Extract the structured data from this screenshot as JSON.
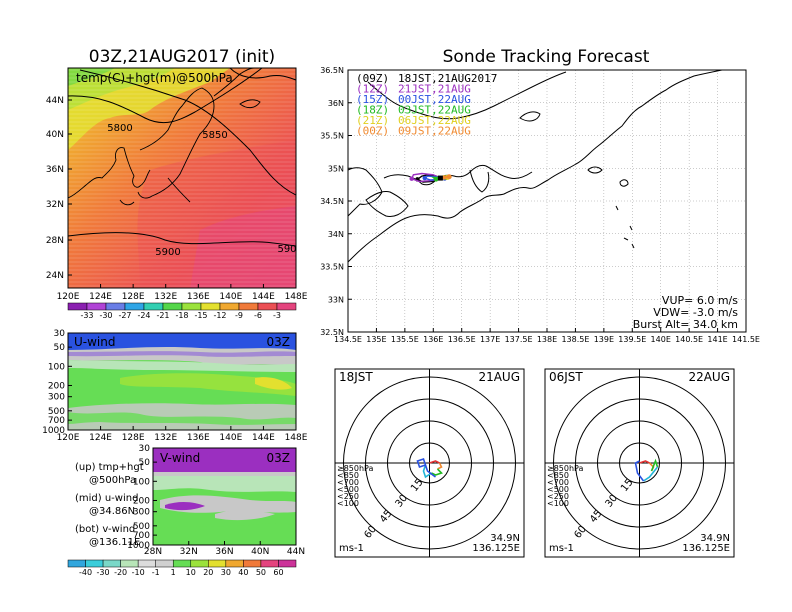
{
  "titles": {
    "left": "03Z,21AUG2017 (init)",
    "right": "Sonde Tracking Forecast"
  },
  "temp_map": {
    "label": "temp(C)+hgt(m)@500hPa",
    "lat_labels": [
      "44N",
      "40N",
      "36N",
      "32N",
      "28N",
      "24N"
    ],
    "lon_labels": [
      "120E",
      "124E",
      "128E",
      "132E",
      "136E",
      "140E",
      "144E",
      "148E"
    ],
    "contour_labels": [
      "5800",
      "5850",
      "5900",
      "590"
    ],
    "colorbar": [
      "-33",
      "-30",
      "-27",
      "-24",
      "-21",
      "-18",
      "-15",
      "-12",
      "-9",
      "-6",
      "-3"
    ],
    "colorbar_colors": [
      "#8a1fb0",
      "#b043d6",
      "#6a7ee6",
      "#2fa5e6",
      "#32cfb2",
      "#54d64a",
      "#9be23c",
      "#e3e02f",
      "#f0a830",
      "#f07a3a",
      "#eb4f54",
      "#e4447e"
    ]
  },
  "u_wind": {
    "label": "U-wind",
    "time": "03Z",
    "y_labels": [
      "30",
      "50",
      "100",
      "200",
      "300",
      "500",
      "700",
      "1000"
    ],
    "x_labels": [
      "120E",
      "124E",
      "128E",
      "132E",
      "136E",
      "140E",
      "144E",
      "148E"
    ]
  },
  "v_wind": {
    "label": "V-wind",
    "time": "03Z",
    "y_labels": [
      "30",
      "50",
      "100",
      "200",
      "300",
      "500",
      "700",
      "1000"
    ],
    "x_labels": [
      "28N",
      "32N",
      "36N",
      "40N",
      "44N"
    ]
  },
  "legend_notes": [
    {
      "a": "(up) tmp+hgt",
      "b": "@500hPa"
    },
    {
      "a": "(mid) u-wind",
      "b": "@34.86N"
    },
    {
      "a": "(bot) v-wind",
      "b": "@136.11E"
    }
  ],
  "wind_colorbar": {
    "labels": [
      "-40",
      "-30",
      "-20",
      "-10",
      "-1",
      "1",
      "10",
      "20",
      "30",
      "40",
      "50",
      "60"
    ],
    "colors": [
      "#31a6dd",
      "#3acdda",
      "#7ad8c8",
      "#b8e5b8",
      "#dcdcdc",
      "#d0d0d0",
      "#66dd55",
      "#9be23c",
      "#e3e02f",
      "#f0a830",
      "#f07a3a",
      "#e4447e",
      "#cc3399"
    ]
  },
  "track_map": {
    "lat_labels": [
      "36.5N",
      "36N",
      "35.5N",
      "35N",
      "34.5N",
      "34N",
      "33.5N",
      "33N",
      "32.5N"
    ],
    "lon_labels": [
      "134.5E",
      "135E",
      "135.5E",
      "136E",
      "136.5E",
      "137E",
      "137.5E",
      "138E",
      "138.5E",
      "139E",
      "139.5E",
      "140E",
      "140.5E",
      "141E",
      "141.5E"
    ],
    "launches": [
      {
        "tag": "(09Z)",
        "text": "18JST,21AUG2017",
        "color": "#000000"
      },
      {
        "tag": "(12Z)",
        "text": "21JST,21AUG",
        "color": "#9b2fc0"
      },
      {
        "tag": "(15Z)",
        "text": "00JST,22AUG",
        "color": "#2a52e0"
      },
      {
        "tag": "(18Z)",
        "text": "03JST,22AUG",
        "color": "#22bb22"
      },
      {
        "tag": "(21Z)",
        "text": "06JST,22AUG",
        "color": "#e0d020"
      },
      {
        "tag": "(00Z)",
        "text": "09JST,22AUG",
        "color": "#f08a30"
      }
    ],
    "stats": [
      "VUP= 6.0 m/s",
      "VDW= -3.0 m/s",
      "Burst Alt= 34.0 km"
    ]
  },
  "hodo_left": {
    "time": "18JST",
    "date": "21AUG",
    "rings": [
      "15",
      "30",
      "45",
      "60"
    ],
    "units": "ms-1",
    "lat": "34.9N",
    "lon": "136.125E",
    "levels": [
      {
        "label": "≥850hPa",
        "color": "#e23232"
      },
      {
        "label": "<850",
        "color": "#f08a30"
      },
      {
        "label": "<700",
        "color": "#e0d020"
      },
      {
        "label": "<500",
        "color": "#22bb22"
      },
      {
        "label": "<250",
        "color": "#22b5d8"
      },
      {
        "label": "<100",
        "color": "#2a52e0"
      }
    ]
  },
  "hodo_right": {
    "time": "06JST",
    "date": "22AUG",
    "rings": [
      "15",
      "30",
      "45",
      "60"
    ],
    "units": "ms-1",
    "lat": "34.9N",
    "lon": "136.125E",
    "levels": [
      {
        "label": "≥850hPa",
        "color": "#e23232"
      },
      {
        "label": "<850",
        "color": "#f08a30"
      },
      {
        "label": "<700",
        "color": "#e0d020"
      },
      {
        "label": "<500",
        "color": "#22bb22"
      },
      {
        "label": "<250",
        "color": "#22b5d8"
      },
      {
        "label": "<100",
        "color": "#2a52e0"
      }
    ]
  },
  "chart_data": [
    {
      "type": "heatmap",
      "title": "temp(C)+hgt(m)@500hPa",
      "x_ticks": [
        "120E",
        "124E",
        "128E",
        "132E",
        "136E",
        "140E",
        "144E",
        "148E"
      ],
      "y_ticks": [
        "24N",
        "28N",
        "32N",
        "36N",
        "40N",
        "44N"
      ],
      "colorbar": [
        -33,
        -30,
        -27,
        -24,
        -21,
        -18,
        -15,
        -12,
        -9,
        -6,
        -3
      ],
      "contours": [
        5800,
        5850,
        5900
      ]
    },
    {
      "type": "heatmap",
      "title": "U-wind",
      "x_ticks": [
        "120E",
        "124E",
        "128E",
        "132E",
        "136E",
        "140E",
        "144E",
        "148E"
      ],
      "y_ticks": [
        30,
        50,
        100,
        200,
        300,
        500,
        700,
        1000
      ]
    },
    {
      "type": "heatmap",
      "title": "V-wind",
      "x_ticks": [
        "28N",
        "32N",
        "36N",
        "40N",
        "44N"
      ],
      "y_ticks": [
        30,
        50,
        100,
        200,
        300,
        500,
        700,
        1000
      ],
      "colorbar": [
        -40,
        -30,
        -20,
        -10,
        -1,
        1,
        10,
        20,
        30,
        40,
        50,
        60
      ]
    },
    {
      "type": "line",
      "title": "Sonde Tracking Forecast",
      "xlim": [
        134.5,
        141.5
      ],
      "ylim": [
        32.5,
        36.5
      ],
      "series": [
        {
          "name": "(09Z) 18JST,21AUG2017",
          "x": [
            136.125,
            136.05,
            135.9,
            135.8,
            135.72,
            135.82,
            135.98,
            136.1,
            136.2
          ],
          "y": [
            34.85,
            34.88,
            34.9,
            34.88,
            34.83,
            34.79,
            34.8,
            34.83,
            34.85
          ]
        },
        {
          "name": "(12Z) 21JST,21AUG",
          "x": [
            136.125,
            136.0,
            135.8,
            135.65,
            135.62,
            135.75,
            135.95,
            136.15,
            136.22
          ],
          "y": [
            34.85,
            34.9,
            34.92,
            34.9,
            34.84,
            34.8,
            34.81,
            34.84,
            34.86
          ]
        },
        {
          "name": "(15Z) 00JST,22AUG",
          "x": [
            136.125,
            136.05,
            135.9,
            135.85,
            135.95,
            136.1,
            136.2
          ],
          "y": [
            34.85,
            34.87,
            34.88,
            34.85,
            34.82,
            34.83,
            34.85
          ]
        },
        {
          "name": "(18Z) 03JST,22AUG",
          "x": [
            136.125,
            136.1,
            136.0,
            136.05,
            136.15,
            136.22
          ],
          "y": [
            34.85,
            34.86,
            34.86,
            34.83,
            34.84,
            34.86
          ]
        },
        {
          "name": "(21Z) 06JST,22AUG",
          "x": [
            136.125,
            136.18,
            136.25
          ],
          "y": [
            34.85,
            34.86,
            34.86
          ]
        },
        {
          "name": "(00Z) 09JST,22AUG",
          "x": [
            136.125,
            136.2,
            136.28
          ],
          "y": [
            34.85,
            34.86,
            34.87
          ]
        }
      ],
      "stats": {
        "VUP_mps": 6.0,
        "VDW_mps": -3.0,
        "burst_alt_km": 34.0
      }
    },
    {
      "type": "line",
      "title": "18JST 21AUG",
      "rings_ms": [
        15,
        30,
        45,
        60
      ],
      "location": {
        "lat": "34.9N",
        "lon": "136.125E"
      }
    },
    {
      "type": "line",
      "title": "06JST 22AUG",
      "rings_ms": [
        15,
        30,
        45,
        60
      ],
      "location": {
        "lat": "34.9N",
        "lon": "136.125E"
      }
    }
  ]
}
